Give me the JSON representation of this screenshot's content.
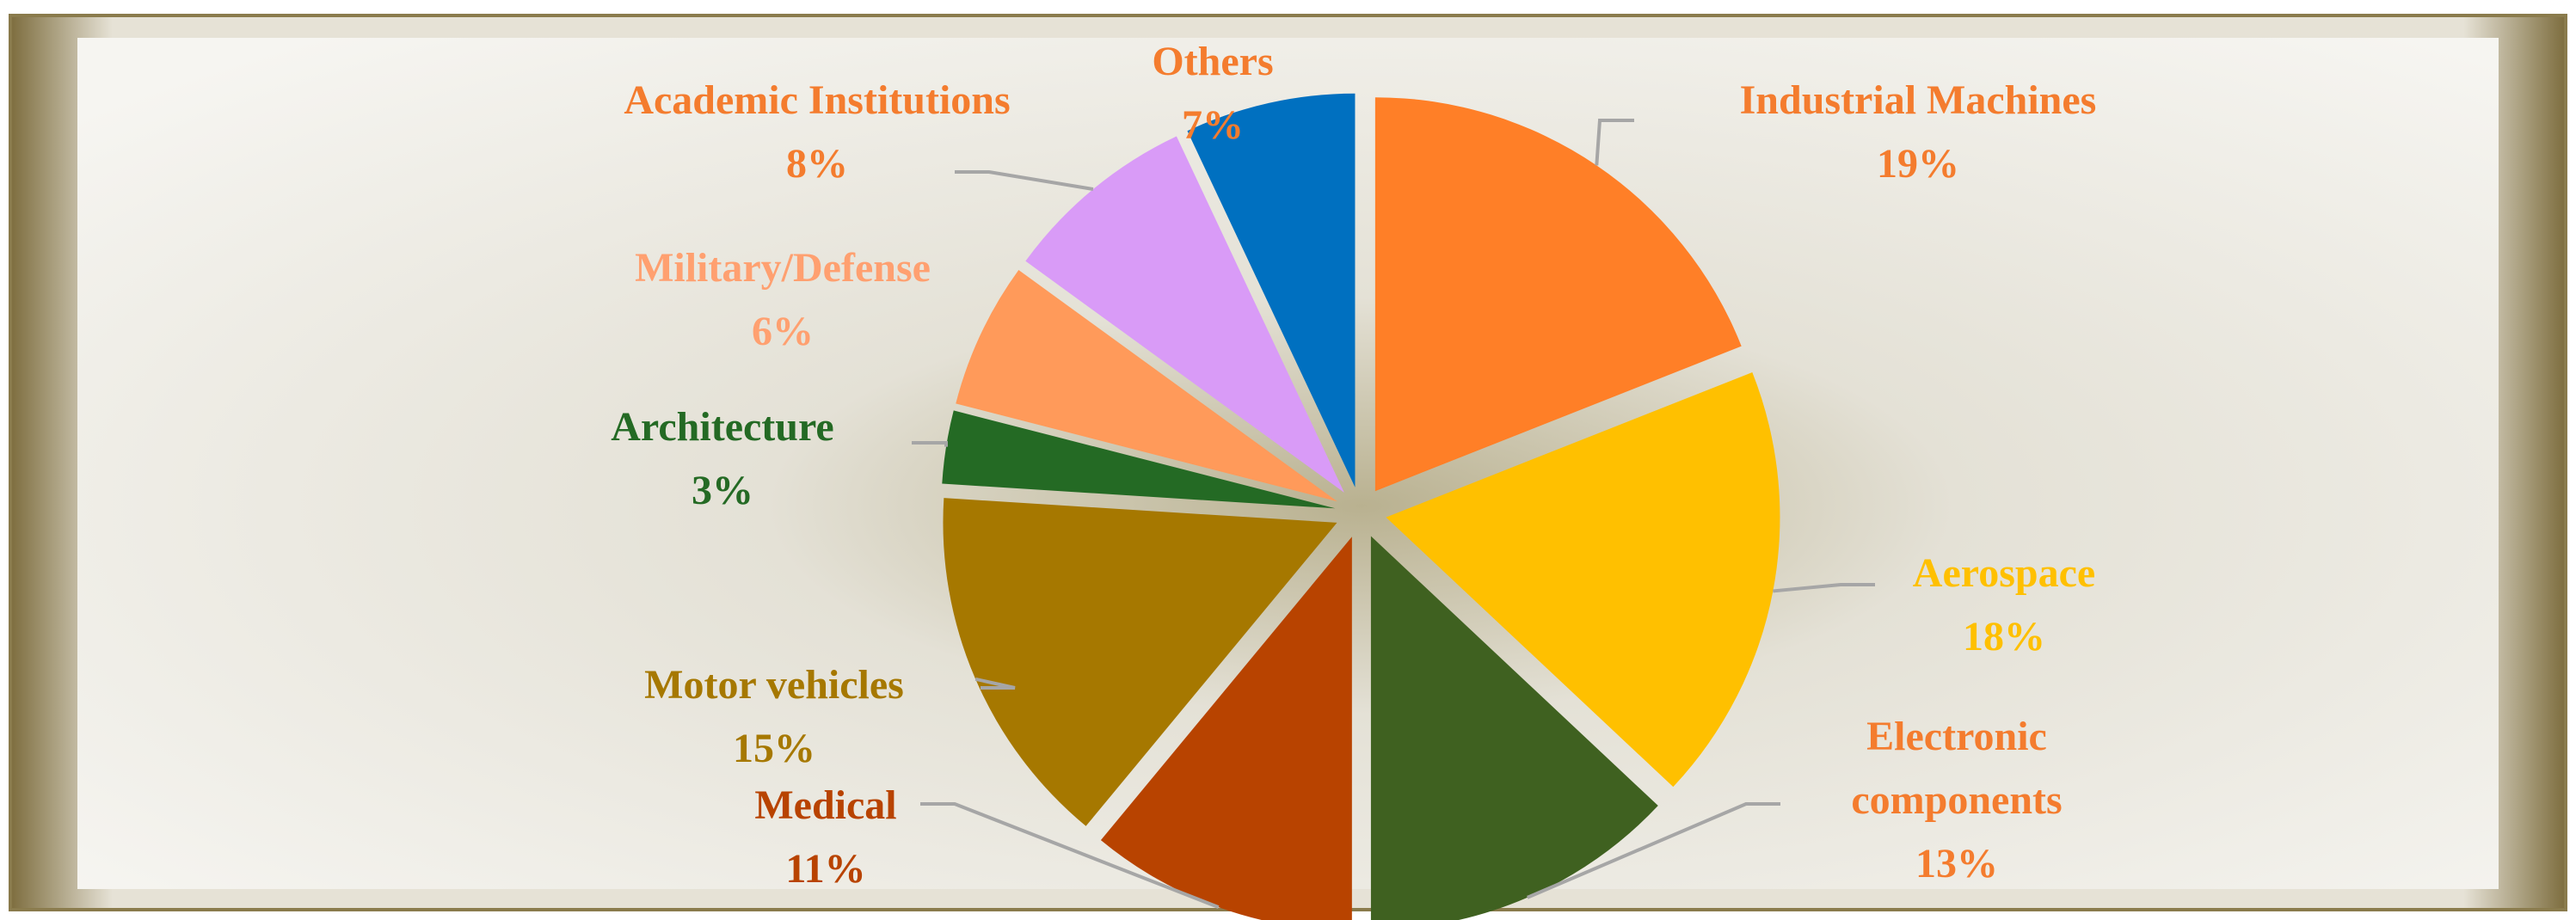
{
  "chart_data": {
    "type": "pie",
    "categories": [
      "Industrial Machines",
      "Aerospace",
      "Electronic components",
      "Medical",
      "Motor vehicles",
      "Architecture",
      "Military/Defense",
      "Academic Institutions",
      "Others"
    ],
    "values": [
      19,
      18,
      13,
      11,
      15,
      3,
      6,
      8,
      7
    ],
    "value_labels": [
      "19%",
      "18%",
      "13%",
      "11%",
      "15%",
      "3%",
      "6%",
      "8%",
      "7%"
    ],
    "colors": [
      "#FF7F27",
      "#FFC000",
      "#3F6120",
      "#B84300",
      "#A67800",
      "#246A24",
      "#FF9A5A",
      "#D99BF7",
      "#0070C0"
    ],
    "label_colors": [
      "#F47C2E",
      "#FFC000",
      "#F47C2E",
      "#B84300",
      "#A67800",
      "#246A24",
      "#FFA070",
      "#F47C2E",
      "#F47C2E"
    ]
  }
}
